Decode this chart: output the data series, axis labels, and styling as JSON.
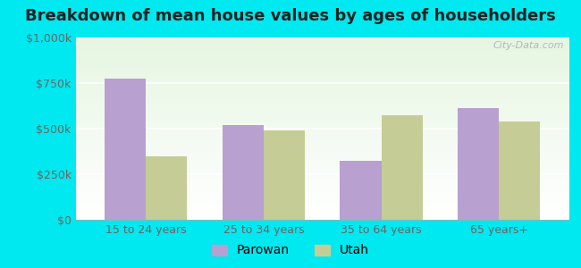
{
  "title": "Breakdown of mean house values by ages of householders",
  "categories": [
    "15 to 24 years",
    "25 to 34 years",
    "35 to 64 years",
    "65 years+"
  ],
  "parowan_values": [
    775000,
    520000,
    325000,
    615000
  ],
  "utah_values": [
    350000,
    490000,
    575000,
    540000
  ],
  "parowan_color": "#b8a0d0",
  "utah_color": "#c5cc96",
  "ylim": [
    0,
    1000000
  ],
  "yticks": [
    0,
    250000,
    500000,
    750000,
    1000000
  ],
  "ytick_labels": [
    "$0",
    "$250k",
    "$500k",
    "$750k",
    "$1,000k"
  ],
  "background_outer": "#00e8f0",
  "legend_labels": [
    "Parowan",
    "Utah"
  ],
  "bar_width": 0.35,
  "watermark": "City-Data.com",
  "title_fontsize": 13,
  "axis_fontsize": 9,
  "legend_fontsize": 10
}
